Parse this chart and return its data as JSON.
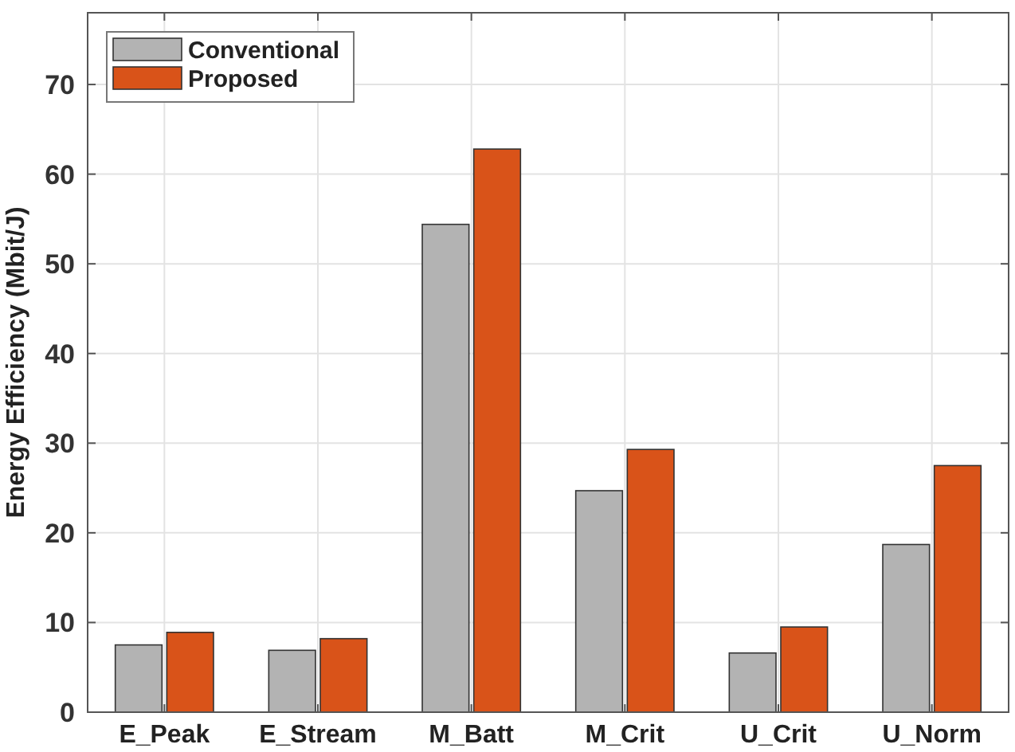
{
  "chart_data": {
    "type": "bar",
    "ylabel": "Energy Efficiency (Mbit/J)",
    "categories": [
      "E_Peak",
      "E_Stream",
      "M_Batt",
      "M_Crit",
      "U_Crit",
      "U_Norm"
    ],
    "series": [
      {
        "name": "Conventional",
        "color": "#b3b3b3",
        "values": [
          7.5,
          6.9,
          54.4,
          24.7,
          6.6,
          18.7
        ]
      },
      {
        "name": "Proposed",
        "color": "#d95319",
        "values": [
          8.9,
          8.2,
          62.8,
          29.3,
          9.5,
          27.5
        ]
      }
    ],
    "ylim": [
      0,
      78
    ],
    "yticks": [
      0,
      10,
      20,
      30,
      40,
      50,
      60,
      70
    ],
    "grid": true,
    "legend": "top left"
  }
}
